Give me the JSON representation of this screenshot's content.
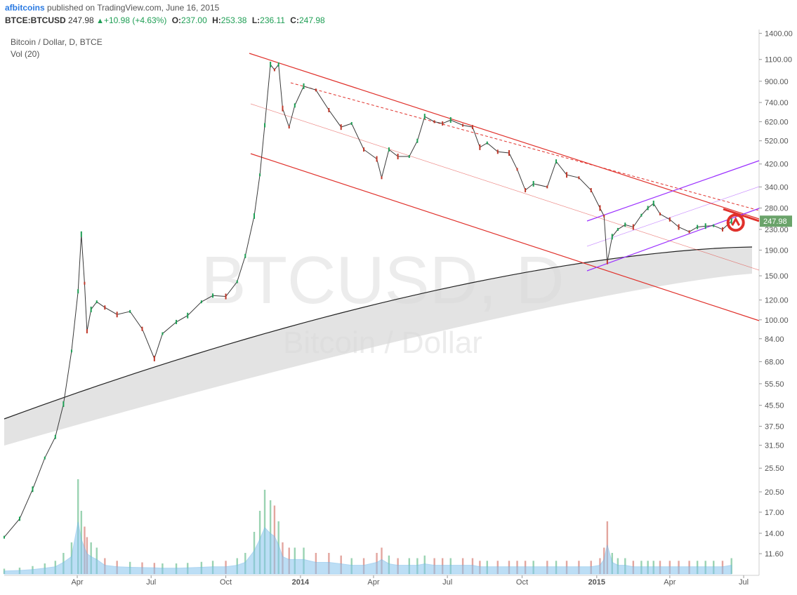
{
  "header": {
    "author": "afbitcoins",
    "published": "published on TradingView.com, June 16, 2015",
    "symbol": "BTCE:BTCUSD",
    "last": "247.98",
    "change": "+10.98 (+4.63%)",
    "open_label": "O:",
    "open": "237.00",
    "high_label": "H:",
    "high": "253.38",
    "low_label": "L:",
    "low": "236.11",
    "close_label": "C:",
    "close": "247.98"
  },
  "legend": {
    "series": "Bitcoin / Dollar, D, BTCE",
    "volume": "Vol (20)"
  },
  "watermark": {
    "symbol": "BTCUSD, D",
    "name": "Bitcoin / Dollar"
  },
  "colors": {
    "up": "#1e9e54",
    "down": "#c0392b",
    "channel": "#e0312b",
    "purple": "#9b30ff",
    "price_badge": "#6aa36a",
    "volume_fill": "#87c4ee"
  },
  "chart_data": {
    "type": "line",
    "title": "Bitcoin / Dollar, D, BTCE",
    "xlabel": "",
    "ylabel": "",
    "y_scale": "log",
    "ylim": [
      9.5,
      1450
    ],
    "xlim": [
      "2013-01-01",
      "2015-07-20"
    ],
    "y_ticks": [
      "1400.00",
      "1100.00",
      "900.00",
      "740.00",
      "620.00",
      "520.00",
      "420.00",
      "340.00",
      "280.00",
      "230.00",
      "190.00",
      "150.00",
      "120.00",
      "100.00",
      "84.00",
      "68.00",
      "55.50",
      "45.50",
      "37.50",
      "31.50",
      "25.50",
      "20.50",
      "17.00",
      "14.00",
      "11.60"
    ],
    "x_ticks": [
      {
        "date": "2013-04-01",
        "label": "Apr"
      },
      {
        "date": "2013-07-01",
        "label": "Jul"
      },
      {
        "date": "2013-10-01",
        "label": "Oct"
      },
      {
        "date": "2014-01-01",
        "label": "2014"
      },
      {
        "date": "2014-04-01",
        "label": "Apr"
      },
      {
        "date": "2014-07-01",
        "label": "Jul"
      },
      {
        "date": "2014-10-01",
        "label": "Oct"
      },
      {
        "date": "2015-01-01",
        "label": "2015"
      },
      {
        "date": "2015-04-01",
        "label": "Apr"
      },
      {
        "date": "2015-07-01",
        "label": "Jul"
      }
    ],
    "last_price_label": "247.98",
    "series": [
      {
        "name": "",
        "x": [
          "2013-01-01",
          "2013-01-20",
          "2013-02-05",
          "2013-02-20",
          "2013-03-05",
          "2013-03-15",
          "2013-03-25",
          "2013-04-02",
          "2013-04-06",
          "2013-04-10",
          "2013-04-13",
          "2013-04-18",
          "2013-04-25",
          "2013-05-05",
          "2013-05-20",
          "2013-06-05",
          "2013-06-20",
          "2013-07-05",
          "2013-07-15",
          "2013-08-01",
          "2013-08-15",
          "2013-09-01",
          "2013-09-15",
          "2013-10-01",
          "2013-10-15",
          "2013-10-25",
          "2013-11-05",
          "2013-11-12",
          "2013-11-18",
          "2013-11-25",
          "2013-11-30",
          "2013-12-05",
          "2013-12-10",
          "2013-12-18",
          "2013-12-25",
          "2014-01-05",
          "2014-01-20",
          "2014-02-05",
          "2014-02-20",
          "2014-03-05",
          "2014-03-20",
          "2014-04-05",
          "2014-04-11",
          "2014-04-20",
          "2014-05-01",
          "2014-05-15",
          "2014-05-25",
          "2014-06-03",
          "2014-06-15",
          "2014-06-25",
          "2014-07-05",
          "2014-07-20",
          "2014-08-01",
          "2014-08-10",
          "2014-08-19",
          "2014-09-01",
          "2014-09-15",
          "2014-09-25",
          "2014-10-05",
          "2014-10-15",
          "2014-11-01",
          "2014-11-12",
          "2014-11-25",
          "2014-12-10",
          "2014-12-25",
          "2015-01-05",
          "2015-01-10",
          "2015-01-14",
          "2015-01-20",
          "2015-01-27",
          "2015-02-05",
          "2015-02-15",
          "2015-02-25",
          "2015-03-05",
          "2015-03-12",
          "2015-03-20",
          "2015-04-01",
          "2015-04-12",
          "2015-04-25",
          "2015-05-05",
          "2015-05-15",
          "2015-05-25",
          "2015-06-05",
          "2015-06-16"
        ],
        "values": [
          13.5,
          16,
          21,
          28,
          34,
          46,
          75,
          130,
          220,
          140,
          90,
          110,
          118,
          112,
          105,
          108,
          92,
          70,
          88,
          98,
          104,
          118,
          125,
          124,
          142,
          180,
          260,
          380,
          600,
          1050,
          1000,
          1050,
          700,
          590,
          720,
          860,
          830,
          690,
          590,
          610,
          480,
          440,
          370,
          480,
          450,
          450,
          520,
          650,
          620,
          610,
          630,
          600,
          590,
          490,
          510,
          470,
          465,
          400,
          330,
          350,
          340,
          430,
          380,
          370,
          330,
          280,
          260,
          170,
          215,
          230,
          240,
          235,
          262,
          280,
          292,
          265,
          252,
          235,
          225,
          235,
          237,
          238,
          230,
          248
        ]
      }
    ],
    "volume": [
      1,
      1.2,
      1.5,
      2,
      2.5,
      4,
      6,
      18,
      12,
      9,
      7,
      6,
      5,
      3,
      2.5,
      2.3,
      2.2,
      2.1,
      2,
      2,
      2.1,
      2.3,
      2.5,
      2.5,
      3,
      4,
      8,
      12,
      16,
      14,
      13,
      10,
      6,
      5,
      5,
      5,
      4,
      4,
      3.5,
      3,
      3,
      4,
      5,
      3.5,
      3,
      3,
      3,
      3.5,
      3,
      3,
      3,
      3,
      3,
      2.5,
      2.5,
      2.5,
      2.5,
      2.5,
      2.5,
      2.5,
      2.5,
      2.5,
      2.5,
      2.5,
      2.5,
      3,
      5,
      10,
      4,
      3,
      3,
      2.5,
      2.5,
      2.5,
      2.5,
      2.5,
      2.5,
      2.5,
      2.5,
      2.5,
      2.5,
      2.5,
      2.5,
      3
    ]
  }
}
